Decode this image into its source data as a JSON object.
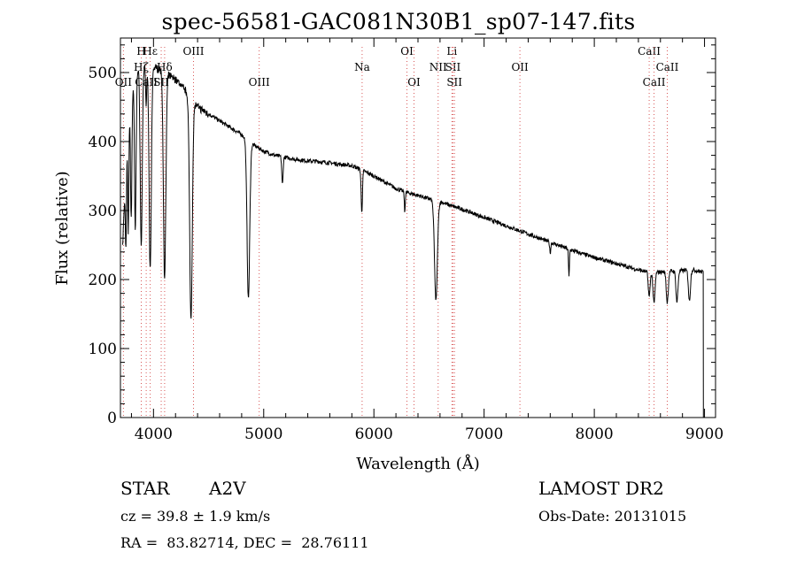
{
  "chart_data": {
    "type": "line",
    "title": "spec-56581-GAC081N30B1_sp07-147.fits",
    "xlabel": "Wavelength (Å)",
    "ylabel": "Flux (relative)",
    "xlim": [
      3700,
      9100
    ],
    "ylim": [
      0,
      550
    ],
    "x_ticks": [
      4000,
      5000,
      6000,
      7000,
      8000,
      9000
    ],
    "y_ticks": [
      0,
      100,
      200,
      300,
      400,
      500
    ],
    "grid": false,
    "continuum": [
      [
        3720,
        250
      ],
      [
        3760,
        400
      ],
      [
        3800,
        470
      ],
      [
        3850,
        500
      ],
      [
        3900,
        510
      ],
      [
        3950,
        512
      ],
      [
        4000,
        508
      ],
      [
        4050,
        505
      ],
      [
        4100,
        500
      ],
      [
        4150,
        495
      ],
      [
        4200,
        490
      ],
      [
        4250,
        482
      ],
      [
        4300,
        472
      ],
      [
        4400,
        450
      ],
      [
        4500,
        440
      ],
      [
        4600,
        430
      ],
      [
        4700,
        420
      ],
      [
        4800,
        410
      ],
      [
        4900,
        396
      ],
      [
        5000,
        386
      ],
      [
        5100,
        380
      ],
      [
        5200,
        377
      ],
      [
        5300,
        374
      ],
      [
        5400,
        372
      ],
      [
        5500,
        371
      ],
      [
        5600,
        369
      ],
      [
        5700,
        367
      ],
      [
        5800,
        365
      ],
      [
        5900,
        358
      ],
      [
        6000,
        350
      ],
      [
        6100,
        341
      ],
      [
        6200,
        332
      ],
      [
        6300,
        326
      ],
      [
        6400,
        322
      ],
      [
        6500,
        317
      ],
      [
        6600,
        313
      ],
      [
        6700,
        307
      ],
      [
        6800,
        302
      ],
      [
        6900,
        296
      ],
      [
        7000,
        290
      ],
      [
        7200,
        278
      ],
      [
        7400,
        266
      ],
      [
        7600,
        254
      ],
      [
        7800,
        242
      ],
      [
        8000,
        232
      ],
      [
        8200,
        223
      ],
      [
        8400,
        214
      ],
      [
        8500,
        210
      ],
      [
        8700,
        212
      ],
      [
        8900,
        214
      ],
      [
        9000,
        210
      ]
    ],
    "absorption": [
      {
        "x": 3750,
        "depth": 120,
        "width": 5
      },
      {
        "x": 3771,
        "depth": 150,
        "width": 5
      },
      {
        "x": 3798,
        "depth": 180,
        "width": 6
      },
      {
        "x": 3835,
        "depth": 220,
        "width": 7
      },
      {
        "x": 3889,
        "depth": 260,
        "width": 9
      },
      {
        "x": 3934,
        "depth": 60,
        "width": 5
      },
      {
        "x": 3970,
        "depth": 300,
        "width": 10
      },
      {
        "x": 4101,
        "depth": 300,
        "width": 11
      },
      {
        "x": 4340,
        "depth": 320,
        "width": 12
      },
      {
        "x": 4861,
        "depth": 230,
        "width": 12
      },
      {
        "x": 5170,
        "depth": 40,
        "width": 6
      },
      {
        "x": 5890,
        "depth": 60,
        "width": 6
      },
      {
        "x": 6280,
        "depth": 30,
        "width": 4
      },
      {
        "x": 6563,
        "depth": 145,
        "width": 13
      },
      {
        "x": 7600,
        "depth": 15,
        "width": 5
      },
      {
        "x": 7770,
        "depth": 40,
        "width": 4
      },
      {
        "x": 8498,
        "depth": 35,
        "width": 8
      },
      {
        "x": 8542,
        "depth": 45,
        "width": 9
      },
      {
        "x": 8662,
        "depth": 45,
        "width": 9
      },
      {
        "x": 8750,
        "depth": 45,
        "width": 9
      },
      {
        "x": 8863,
        "depth": 45,
        "width": 9
      }
    ],
    "noise_amplitude": 3,
    "end_drop": {
      "x": 8990,
      "y": 0
    },
    "line_markers": [
      {
        "label": "Hε",
        "x": 3970,
        "row": 1
      },
      {
        "label": "H",
        "x": 3889,
        "row": 1
      },
      {
        "label": "OII",
        "x": 3727,
        "row": 3
      },
      {
        "label": "Hζ",
        "x": 3889,
        "row": 2
      },
      {
        "label": "CaII",
        "x": 3934,
        "row": 3
      },
      {
        "label": "SII",
        "x": 4070,
        "row": 3
      },
      {
        "label": "Hδ",
        "x": 4101,
        "row": 2
      },
      {
        "label": "OIII",
        "x": 4363,
        "row": 1
      },
      {
        "label": "OIII",
        "x": 4959,
        "row": 3
      },
      {
        "label": "Na",
        "x": 5893,
        "row": 2
      },
      {
        "label": "OI",
        "x": 6300,
        "row": 1
      },
      {
        "label": "OI",
        "x": 6364,
        "row": 3
      },
      {
        "label": "Li",
        "x": 6708,
        "row": 1
      },
      {
        "label": "NII",
        "x": 6583,
        "row": 2
      },
      {
        "label": "SII",
        "x": 6717,
        "row": 2
      },
      {
        "label": "SII",
        "x": 6731,
        "row": 3
      },
      {
        "label": "OII",
        "x": 7325,
        "row": 2
      },
      {
        "label": "CaII",
        "x": 8498,
        "row": 1
      },
      {
        "label": "CaII",
        "x": 8542,
        "row": 3
      },
      {
        "label": "CaII",
        "x": 8662,
        "row": 2
      }
    ]
  },
  "info": {
    "object_type": "STAR",
    "subclass": "A2V",
    "survey": "LAMOST DR2",
    "redshift": "cz = 39.8 ± 1.9 km/s",
    "obs_date": "Obs-Date: 20131015",
    "coords": "RA =  83.82714, DEC =  28.76111"
  }
}
